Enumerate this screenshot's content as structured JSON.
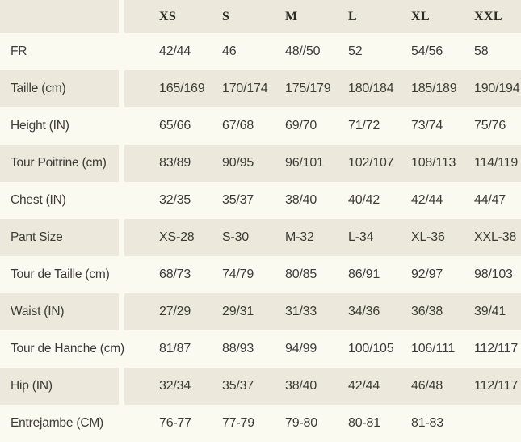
{
  "table": {
    "columns": [
      "XS",
      "S",
      "M",
      "L",
      "XL",
      "XXL"
    ],
    "rows": [
      {
        "label": "FR",
        "values": [
          "42/44",
          "46",
          "48//50",
          "52",
          "54/56",
          "58"
        ]
      },
      {
        "label": "Taille (cm)",
        "values": [
          "165/169",
          "170/174",
          "175/179",
          "180/184",
          "185/189",
          "190/194"
        ]
      },
      {
        "label": "Height (IN)",
        "values": [
          "65/66",
          "67/68",
          "69/70",
          "71/72",
          "73/74",
          "75/76"
        ]
      },
      {
        "label": "Tour Poitrine (cm)",
        "values": [
          "83/89",
          "90/95",
          "96/101",
          "102/107",
          "108/113",
          "114/119"
        ]
      },
      {
        "label": "Chest (IN)",
        "values": [
          "32/35",
          "35/37",
          "38/40",
          "40/42",
          "42/44",
          "44/47"
        ]
      },
      {
        "label": "Pant Size",
        "values": [
          "XS-28",
          "S-30",
          "M-32",
          "L-34",
          "XL-36",
          "XXL-38"
        ]
      },
      {
        "label": "Tour de Taille (cm)",
        "values": [
          "68/73",
          "74/79",
          "80/85",
          "86/91",
          "92/97",
          "98/103"
        ]
      },
      {
        "label": "Waist (IN)",
        "values": [
          "27/29",
          "29/31",
          "31/33",
          "34/36",
          "36/38",
          "39/41"
        ]
      },
      {
        "label": "Tour de Hanche (cm)",
        "values": [
          "81/87",
          "88/93",
          "94/99",
          "100/105",
          "106/111",
          "112/117"
        ]
      },
      {
        "label": "Hip (IN)",
        "values": [
          "32/34",
          "35/37",
          "38/40",
          "42/44",
          "46/48",
          "112/117"
        ]
      },
      {
        "label": "Entrejambe (CM)",
        "values": [
          "76-77",
          "77-79",
          "79-80",
          "80-81",
          "81-83",
          ""
        ]
      }
    ],
    "colors": {
      "row_beige": "#ECE9DC",
      "row_cream": "#FBFAF1",
      "text": "#3C3B35",
      "header_text": "#2B2A24"
    }
  }
}
